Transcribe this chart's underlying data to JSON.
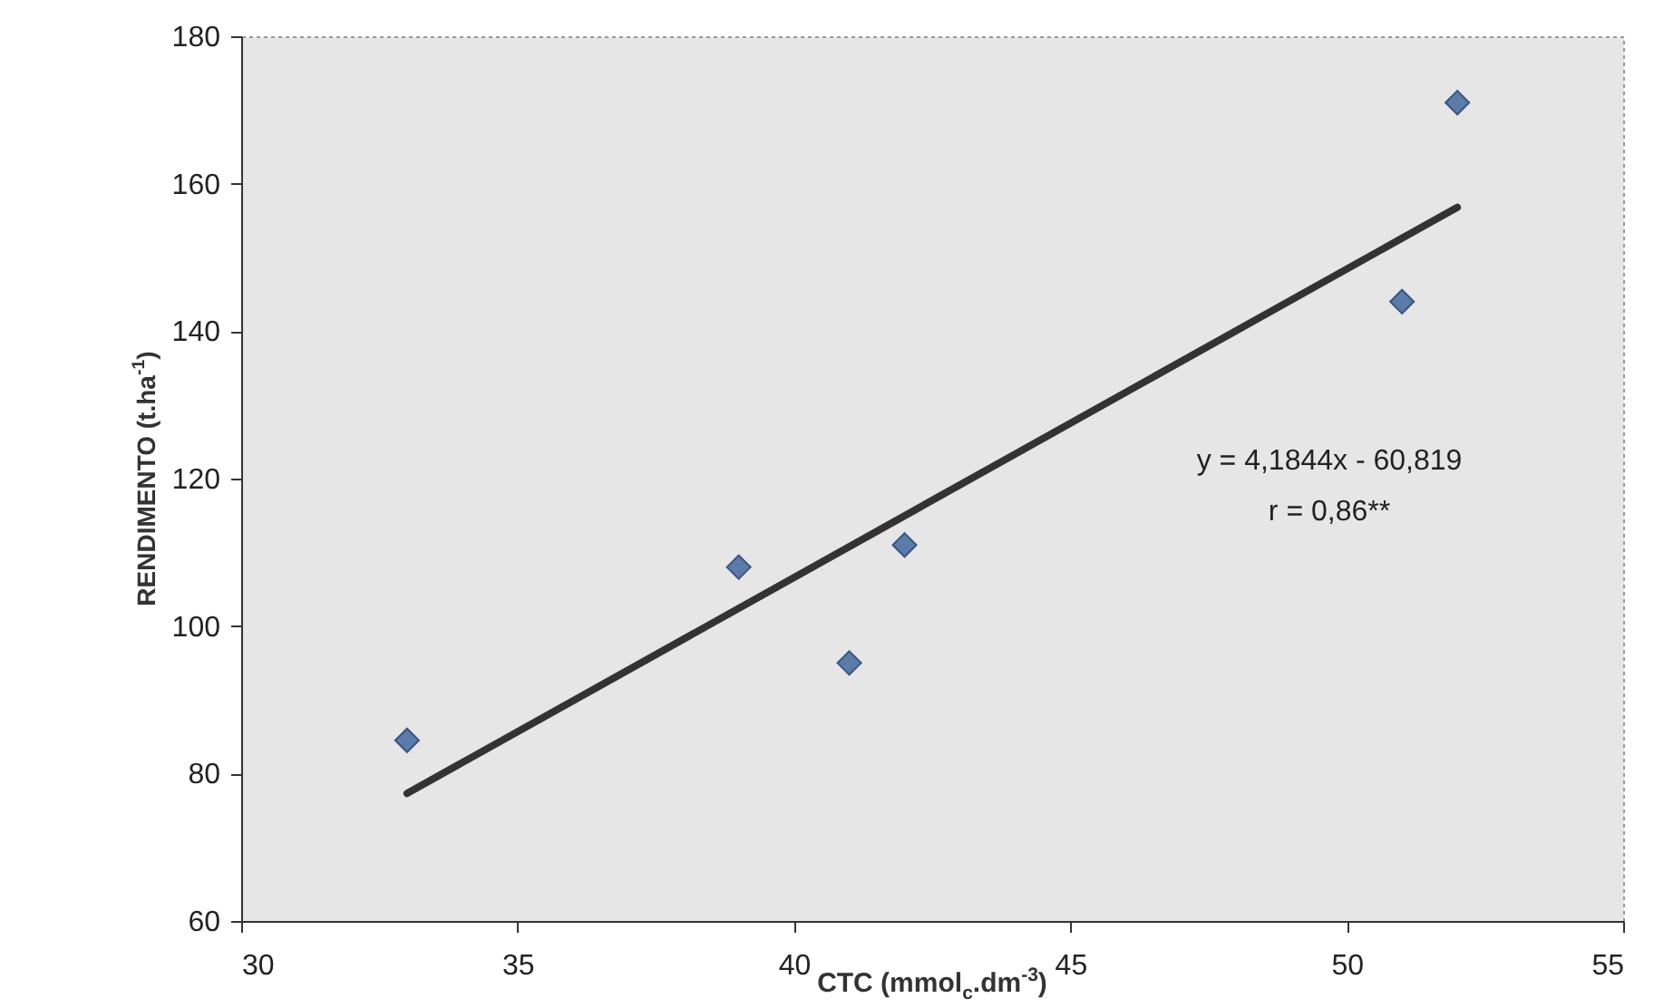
{
  "chart_data": {
    "type": "scatter",
    "xlabel": "CTC (mmol$_{c}$.dm$^{-3}$)",
    "ylabel": "RENDIMENTO (t.ha$^{-1}$)",
    "series": [
      {
        "type": "scatter",
        "color": "#5b7bab",
        "marker": "diamond",
        "x": [
          33,
          39,
          41,
          42,
          51,
          52
        ],
        "values": [
          84.5,
          108,
          95,
          111,
          144,
          171
        ]
      },
      {
        "type": "line",
        "color": "#333333",
        "line_style": "solid",
        "x": [
          33,
          52
        ],
        "values": [
          77.3,
          156.8
        ]
      }
    ],
    "xlim": [
      30,
      55
    ],
    "xticks": [
      30,
      35,
      40,
      45,
      50,
      55
    ],
    "ylim": [
      60,
      180
    ],
    "yticks": [
      60,
      80,
      100,
      120,
      140,
      160,
      180
    ],
    "grid": false,
    "annotations": [
      "y = 4,1844x - 60,819",
      "r = 0,86**"
    ]
  }
}
